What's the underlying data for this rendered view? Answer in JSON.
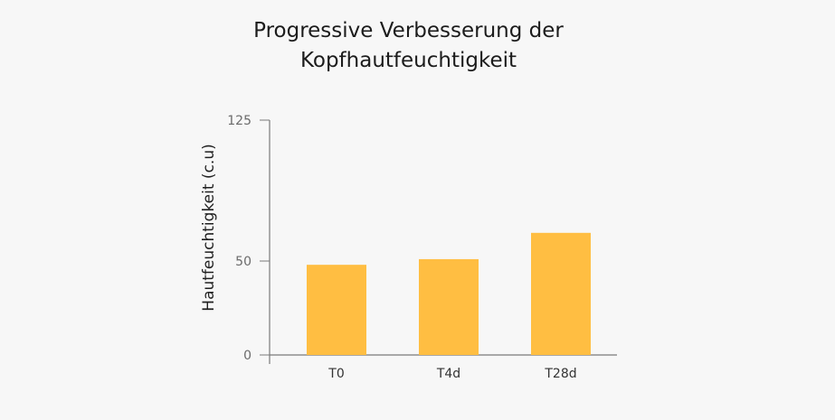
{
  "chart_data": {
    "type": "bar",
    "title": [
      "Progressive Verbesserung der",
      "Kopfhautfeuchtigkeit"
    ],
    "xlabel": "",
    "ylabel": "Hautfeuchtigkeit (c.u)",
    "categories": [
      "T0",
      "T4d",
      "T28d"
    ],
    "values": [
      48,
      51,
      65
    ],
    "yticks": [
      0,
      50,
      125
    ],
    "ylim": [
      0,
      125
    ],
    "grid": false,
    "legend": "none",
    "colors": {
      "bar": "#FFBE42",
      "axis": "#7a7a7a"
    }
  }
}
